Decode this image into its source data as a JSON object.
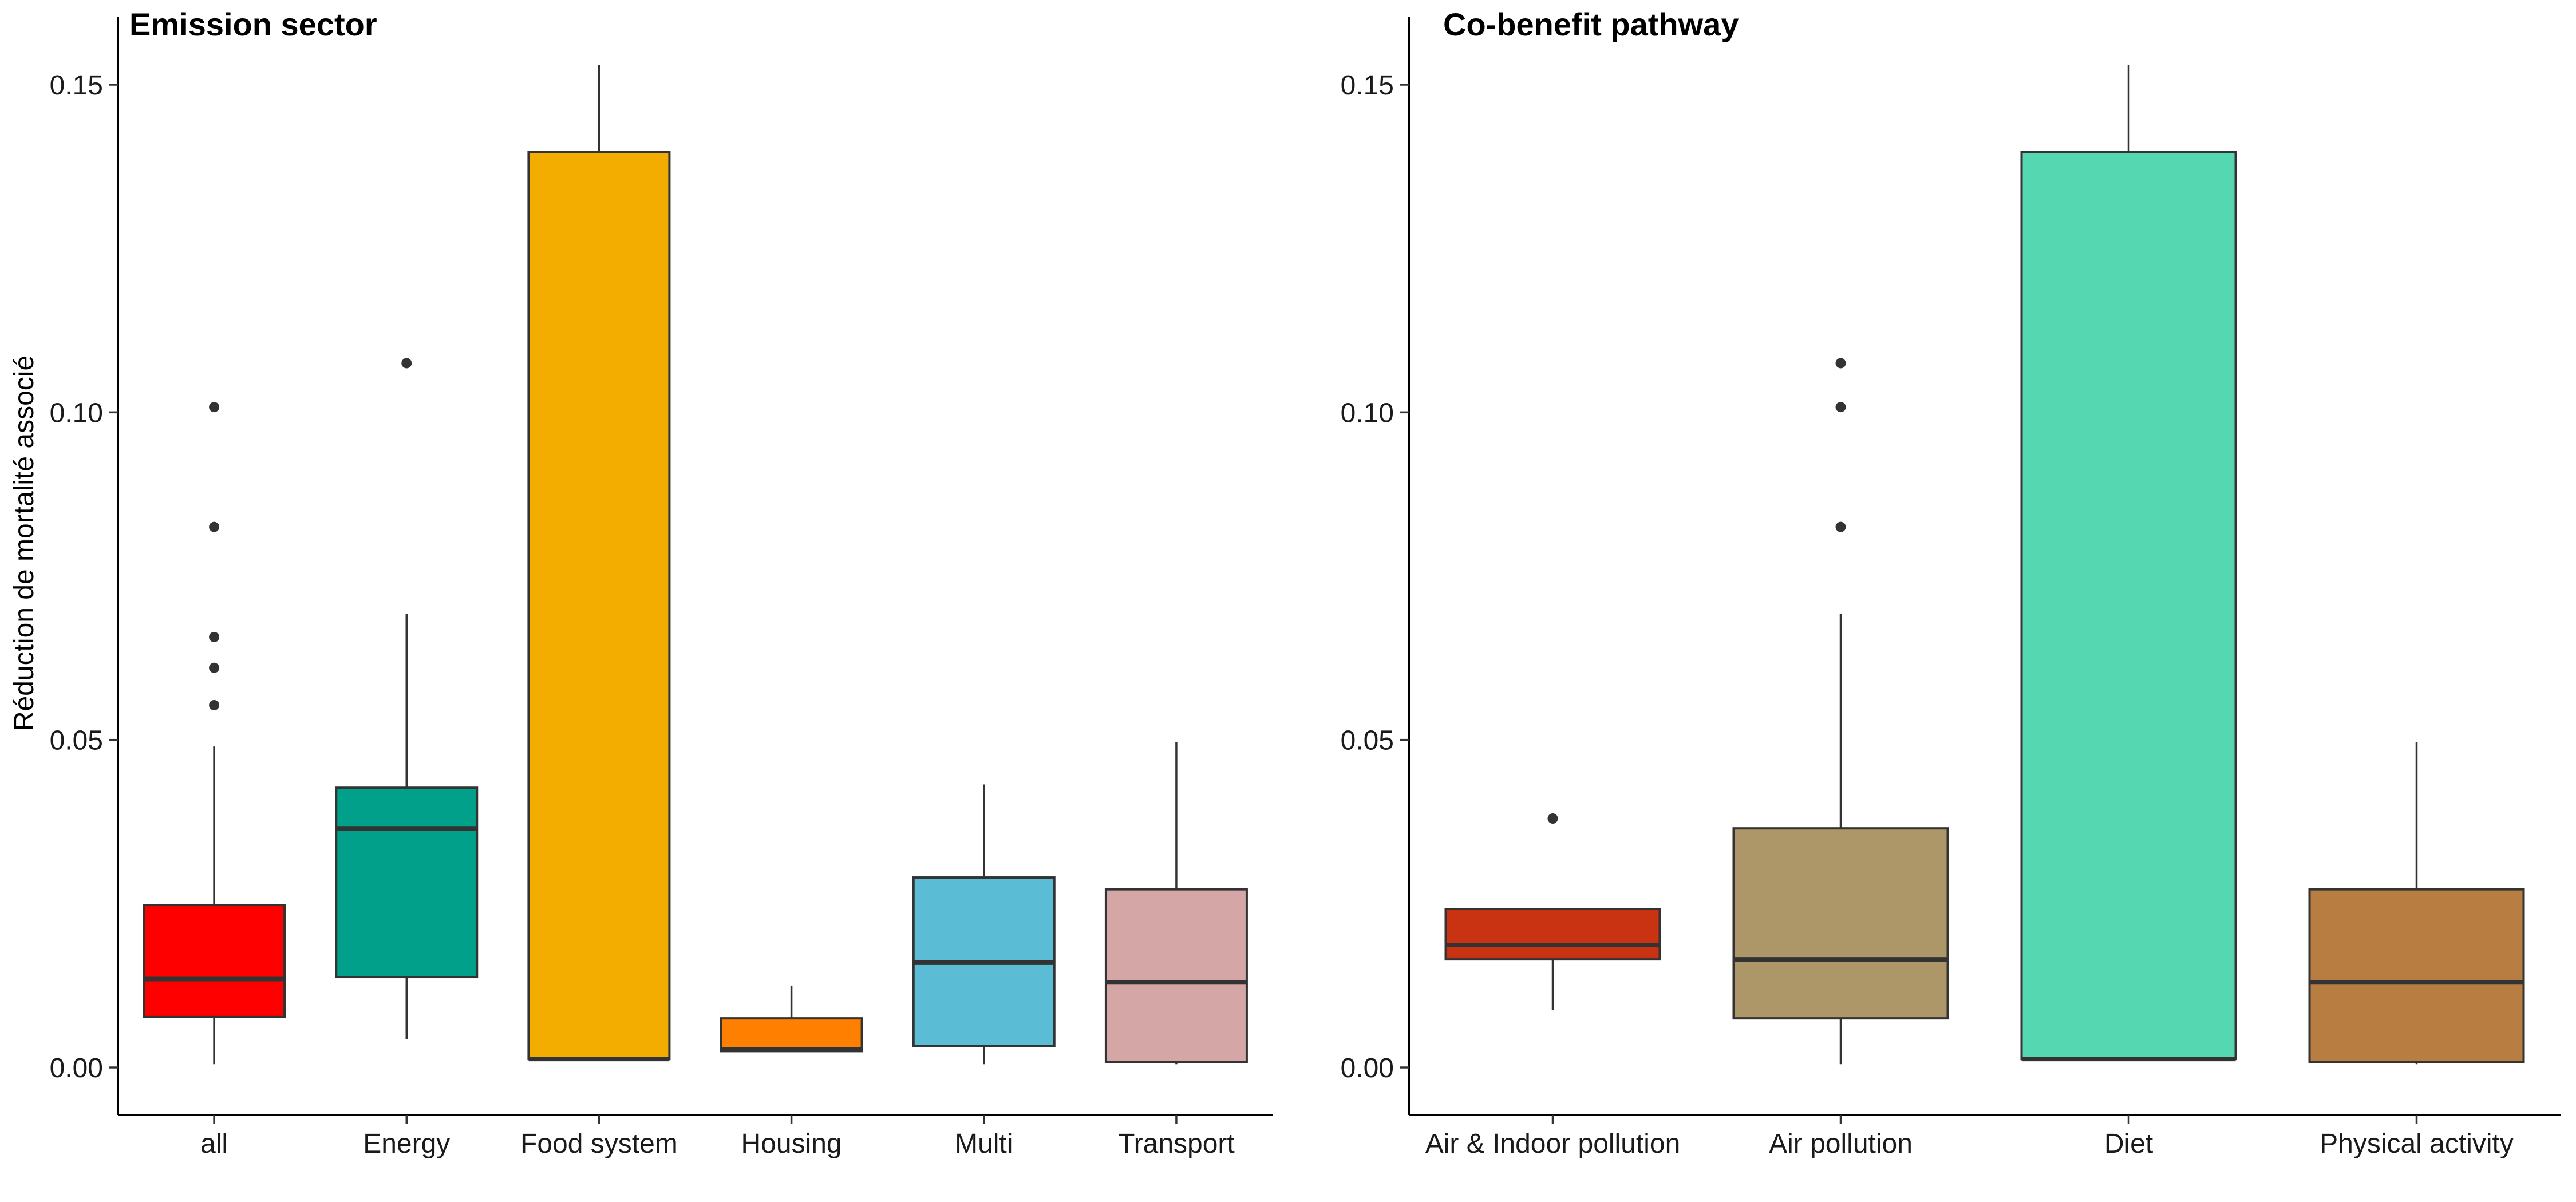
{
  "chart_data": [
    {
      "type": "boxplot",
      "title": "Emission sector",
      "ylabel": "Réduction de mortalité associé",
      "ylim": [
        -0.007,
        0.155
      ],
      "yticks": [
        0.0,
        0.05,
        0.1,
        0.15
      ],
      "ytick_labels": [
        "0.00",
        "0.05",
        "0.10",
        "0.15"
      ],
      "grid": false,
      "categories": [
        "all",
        "Energy",
        "Food system",
        "Housing",
        "Multi",
        "Transport"
      ],
      "boxes": [
        {
          "category": "all",
          "color": "#FF0000",
          "lower_whisker": 0.0005,
          "q1": 0.0077,
          "median": 0.0135,
          "q3": 0.0248,
          "upper_whisker": 0.049,
          "outliers": [
            0.0553,
            0.061,
            0.0657,
            0.0825,
            0.1008
          ]
        },
        {
          "category": "Energy",
          "color": "#00A08A",
          "lower_whisker": 0.0043,
          "q1": 0.0138,
          "median": 0.0365,
          "q3": 0.0427,
          "upper_whisker": 0.0692,
          "outliers": [
            0.1075
          ]
        },
        {
          "category": "Food system",
          "color": "#F2AD00",
          "lower_whisker": 0.0013,
          "q1": 0.0013,
          "median": 0.0013,
          "q3": 0.1397,
          "upper_whisker": 0.153,
          "outliers": []
        },
        {
          "category": "Housing",
          "color": "#FF8000",
          "lower_whisker": 0.0025,
          "q1": 0.0025,
          "median": 0.0028,
          "q3": 0.0075,
          "upper_whisker": 0.0125,
          "outliers": []
        },
        {
          "category": "Multi",
          "color": "#5BBCD6",
          "lower_whisker": 0.0005,
          "q1": 0.0033,
          "median": 0.016,
          "q3": 0.029,
          "upper_whisker": 0.0432,
          "outliers": []
        },
        {
          "category": "Transport",
          "color": "#D4A6A6",
          "lower_whisker": 0.0005,
          "q1": 0.0008,
          "median": 0.013,
          "q3": 0.0272,
          "upper_whisker": 0.0497,
          "outliers": []
        }
      ]
    },
    {
      "type": "boxplot",
      "title": "Co-benefit pathway",
      "ylabel": "",
      "ylim": [
        -0.007,
        0.155
      ],
      "yticks": [
        0.0,
        0.05,
        0.1,
        0.15
      ],
      "ytick_labels": [
        "0.00",
        "0.05",
        "0.10",
        "0.15"
      ],
      "grid": false,
      "categories": [
        "Air & Indoor pollution",
        "Air pollution",
        "Diet",
        "Physical activity"
      ],
      "boxes": [
        {
          "category": "Air & Indoor pollution",
          "color": "#C93312",
          "lower_whisker": 0.0088,
          "q1": 0.0165,
          "median": 0.0187,
          "q3": 0.0242,
          "upper_whisker": 0.0242,
          "outliers": [
            0.038
          ]
        },
        {
          "category": "Air pollution",
          "color": "#AD9667",
          "lower_whisker": 0.0005,
          "q1": 0.0075,
          "median": 0.0165,
          "q3": 0.0365,
          "upper_whisker": 0.0692,
          "outliers": [
            0.0825,
            0.1008,
            0.1075
          ]
        },
        {
          "category": "Diet",
          "color": "#55D8B1",
          "lower_whisker": 0.0013,
          "q1": 0.0013,
          "median": 0.0013,
          "q3": 0.1397,
          "upper_whisker": 0.153,
          "outliers": []
        },
        {
          "category": "Physical activity",
          "color": "#B87D40",
          "lower_whisker": 0.0005,
          "q1": 0.0008,
          "median": 0.013,
          "q3": 0.0272,
          "upper_whisker": 0.0497,
          "outliers": []
        }
      ]
    }
  ]
}
